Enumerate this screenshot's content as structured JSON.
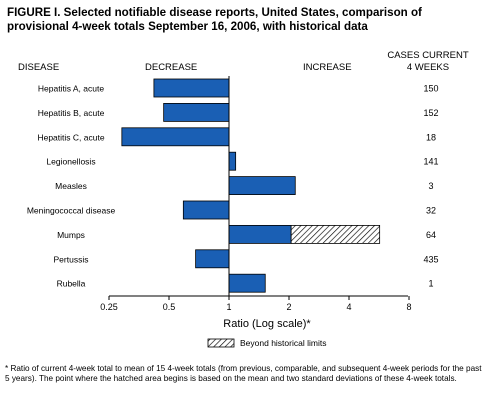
{
  "title": "FIGURE I. Selected notifiable disease reports, United States, comparison of provisional 4-week totals September 16, 2006, with historical data",
  "footnote": "* Ratio of current 4-week total to mean of 15 4-week totals (from previous, comparable, and subsequent 4-week periods for the past 5 years). The point where the hatched area begins is based on the mean and two standard deviations of these 4-week totals.",
  "colors": {
    "bar": "#1a5fb4",
    "hatch": "#000000"
  },
  "chart_data": {
    "type": "bar",
    "orientation": "horizontal",
    "headers": {
      "disease": "DISEASE",
      "decrease": "DECREASE",
      "increase": "INCREASE",
      "cases_line1": "CASES CURRENT",
      "cases_line2": "4 WEEKS"
    },
    "xlabel": "Ratio (Log scale)*",
    "x_scale": "log2",
    "xlim": [
      0.25,
      8
    ],
    "ticks": [
      {
        "value": 0.25,
        "label": "0.25"
      },
      {
        "value": 0.5,
        "label": "0.5"
      },
      {
        "value": 1,
        "label": "1"
      },
      {
        "value": 2,
        "label": "2"
      },
      {
        "value": 4,
        "label": "4"
      },
      {
        "value": 8,
        "label": "8"
      }
    ],
    "legend": {
      "label": "Beyond historical limits",
      "position": "bottom-right"
    },
    "categories": [
      "Hepatitis A, acute",
      "Hepatitis B, acute",
      "Hepatitis C, acute",
      "Legionellosis",
      "Measles",
      "Meningococcal disease",
      "Mumps",
      "Pertussis",
      "Rubella"
    ],
    "ratios": [
      0.42,
      0.47,
      0.29,
      1.08,
      2.15,
      0.59,
      2.05,
      0.68,
      1.52
    ],
    "beyond_limits_to": [
      null,
      null,
      null,
      null,
      null,
      null,
      5.7,
      null,
      null
    ],
    "cases": [
      "150",
      "152",
      "18",
      "141",
      "3",
      "32",
      "64",
      "435",
      "1"
    ]
  }
}
